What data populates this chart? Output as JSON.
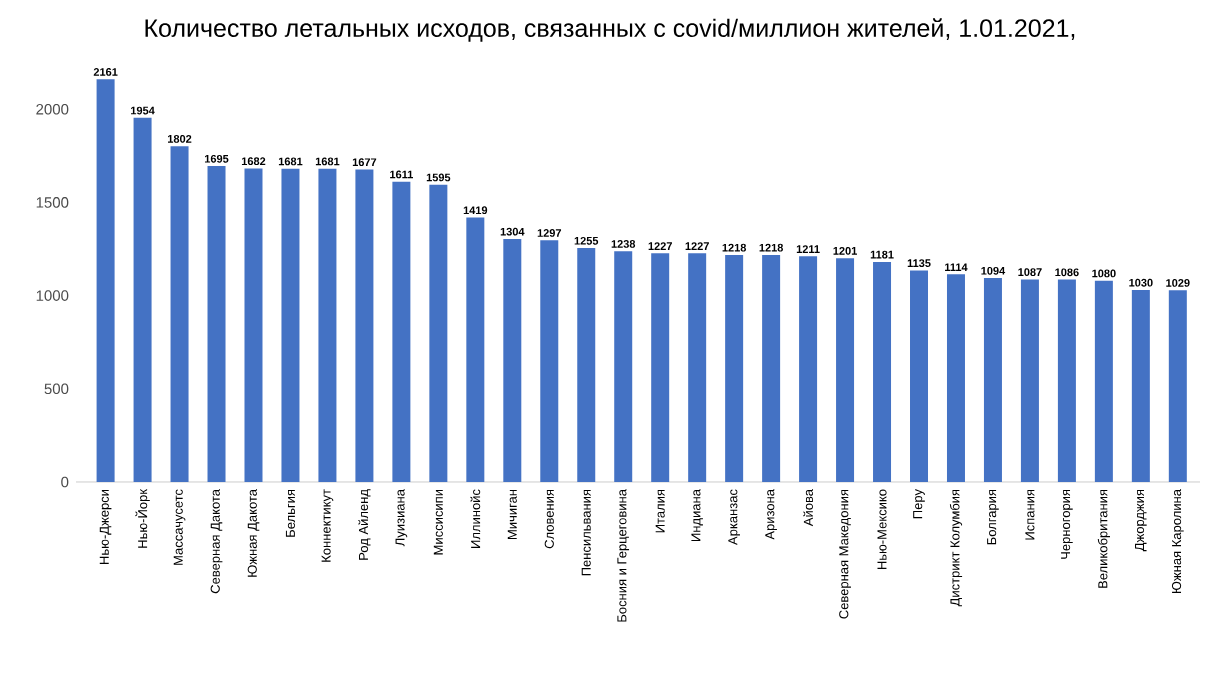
{
  "chart_data": {
    "type": "bar",
    "title": "Количество летальных исходов, связанных с covid/миллион жителей, 1.01.2021,",
    "categories": [
      "Нью-Джерси",
      "Нью-Йорк",
      "Массачусетс",
      "Северная Дакота",
      "Южная Дакота",
      "Бельгия",
      "Коннектикут",
      "Род Айленд",
      "Луизиана",
      "Миссисипи",
      "Иллинойс",
      "Мичиган",
      "Словения",
      "Пенсильвания",
      "Босния и Герцеговина",
      "Италия",
      "Индиана",
      "Арканзас",
      "Аризона",
      "Айова",
      "Северная Македония",
      "Нью-Мексико",
      "Перу",
      "Дистрикт Колумбия",
      "Болгария",
      "Испания",
      "Черногория",
      "Великобритания",
      "Джорджия",
      "Южная Каролина"
    ],
    "values": [
      2161,
      1954,
      1802,
      1695,
      1682,
      1681,
      1681,
      1677,
      1611,
      1595,
      1419,
      1304,
      1297,
      1255,
      1238,
      1227,
      1227,
      1218,
      1218,
      1211,
      1201,
      1181,
      1135,
      1114,
      1094,
      1087,
      1086,
      1080,
      1030,
      1029
    ],
    "color": "#4472c4",
    "ylim": [
      0,
      2200
    ],
    "yticks": [
      0,
      500,
      1000,
      1500,
      2000
    ],
    "data_labels": true
  }
}
